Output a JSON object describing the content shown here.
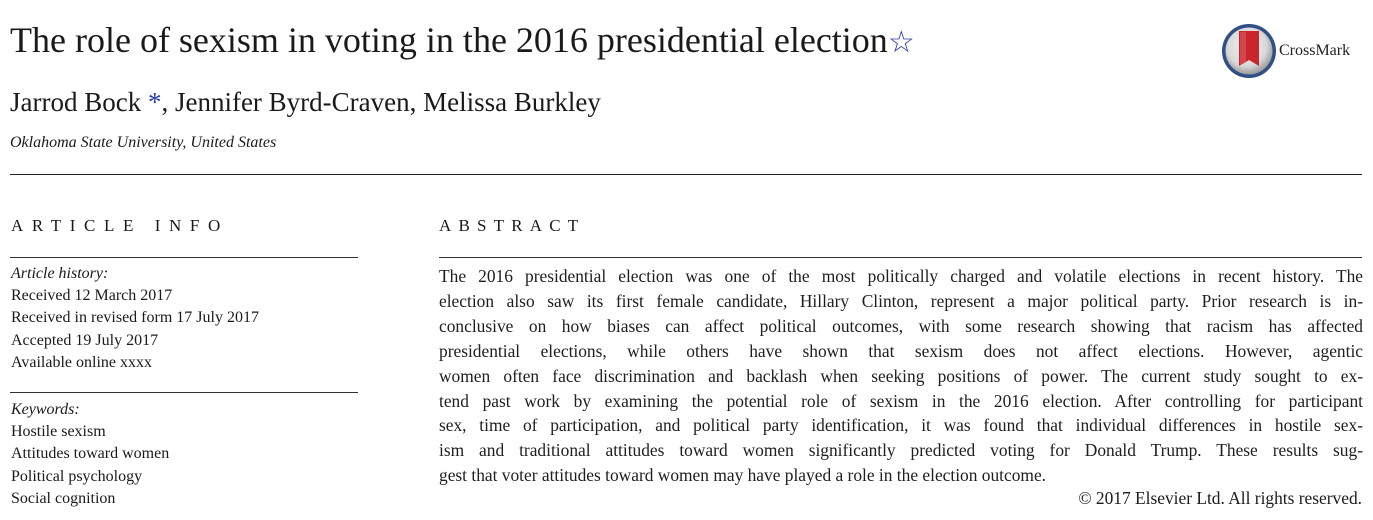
{
  "title": "The role of sexism in voting in the 2016 presidential election",
  "title_mark": "☆",
  "crossmark_label": "CrossMark",
  "authors": {
    "first": "Jarrod Bock",
    "corresponding_mark": " *",
    "rest": ", Jennifer Byrd-Craven, Melissa Burkley"
  },
  "affiliation": "Oklahoma State University, United States",
  "article_info_heading": "ARTICLE INFO",
  "abstract_heading": "ABSTRACT",
  "history": {
    "label": "Article history:",
    "items": [
      "Received 12 March 2017",
      "Received in revised form 17 July 2017",
      "Accepted 19 July 2017",
      "Available online xxxx"
    ]
  },
  "keywords": {
    "label": "Keywords:",
    "items": [
      "Hostile sexism",
      "Attitudes toward women",
      "Political psychology",
      "Social cognition"
    ]
  },
  "abstract_lines": [
    "The 2016 presidential election was one of the most politically charged and volatile elections in recent history. The",
    "election also saw its first female candidate, Hillary Clinton, represent a major political party. Prior research is in-",
    "conclusive on how biases can affect political outcomes, with some research showing that racism has affected",
    "presidential elections, while others have shown that sexism does not affect elections. However, agentic",
    "women often face discrimination and backlash when seeking positions of power. The current study sought to ex-",
    "tend past work by examining the potential role of sexism in the 2016 election. After controlling for participant",
    "sex, time of participation, and political party identification, it was found that individual differences in hostile sex-",
    "ism and traditional attitudes toward women significantly predicted voting for Donald Trump. These results sug-",
    "gest that voter attitudes toward women may have played a role in the election outcome."
  ],
  "copyright": "© 2017 Elsevier Ltd. All rights reserved.",
  "colors": {
    "link_blue": "#2b3aa0",
    "crossmark_red": "#c8262c",
    "crossmark_ring": "#2f4f86"
  }
}
